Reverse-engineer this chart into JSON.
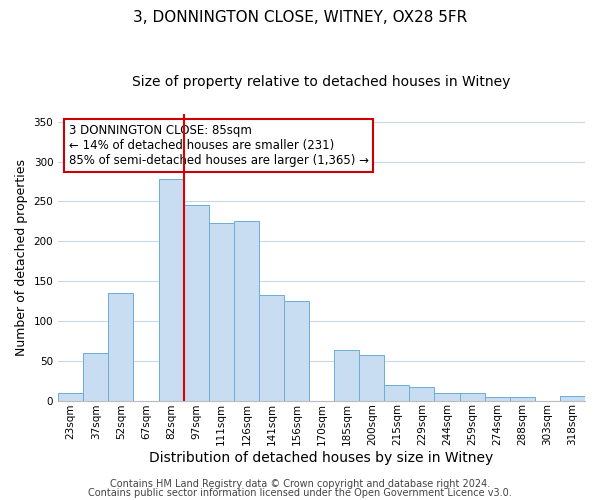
{
  "title": "3, DONNINGTON CLOSE, WITNEY, OX28 5FR",
  "subtitle": "Size of property relative to detached houses in Witney",
  "xlabel": "Distribution of detached houses by size in Witney",
  "ylabel": "Number of detached properties",
  "categories": [
    "23sqm",
    "37sqm",
    "52sqm",
    "67sqm",
    "82sqm",
    "97sqm",
    "111sqm",
    "126sqm",
    "141sqm",
    "156sqm",
    "170sqm",
    "185sqm",
    "200sqm",
    "215sqm",
    "229sqm",
    "244sqm",
    "259sqm",
    "274sqm",
    "288sqm",
    "303sqm",
    "318sqm"
  ],
  "values": [
    10,
    60,
    135,
    0,
    278,
    245,
    223,
    225,
    132,
    125,
    0,
    63,
    57,
    19,
    17,
    10,
    10,
    5,
    5,
    0,
    6
  ],
  "bar_color": "#c9ddf2",
  "bar_edge_color": "#6baed6",
  "vline_color": "#dd0000",
  "annotation_line1": "3 DONNINGTON CLOSE: 85sqm",
  "annotation_line2": "← 14% of detached houses are smaller (231)",
  "annotation_line3": "85% of semi-detached houses are larger (1,365) →",
  "annotation_box_edge_color": "#cc0000",
  "annotation_fontsize": 8.5,
  "ylim": [
    0,
    360
  ],
  "yticks": [
    0,
    50,
    100,
    150,
    200,
    250,
    300,
    350
  ],
  "footer1": "Contains HM Land Registry data © Crown copyright and database right 2024.",
  "footer2": "Contains public sector information licensed under the Open Government Licence v3.0.",
  "title_fontsize": 11,
  "subtitle_fontsize": 10,
  "xlabel_fontsize": 10,
  "ylabel_fontsize": 9,
  "tick_fontsize": 7.5,
  "footer_fontsize": 7,
  "background_color": "#ffffff",
  "grid_color": "#c8d8ea"
}
